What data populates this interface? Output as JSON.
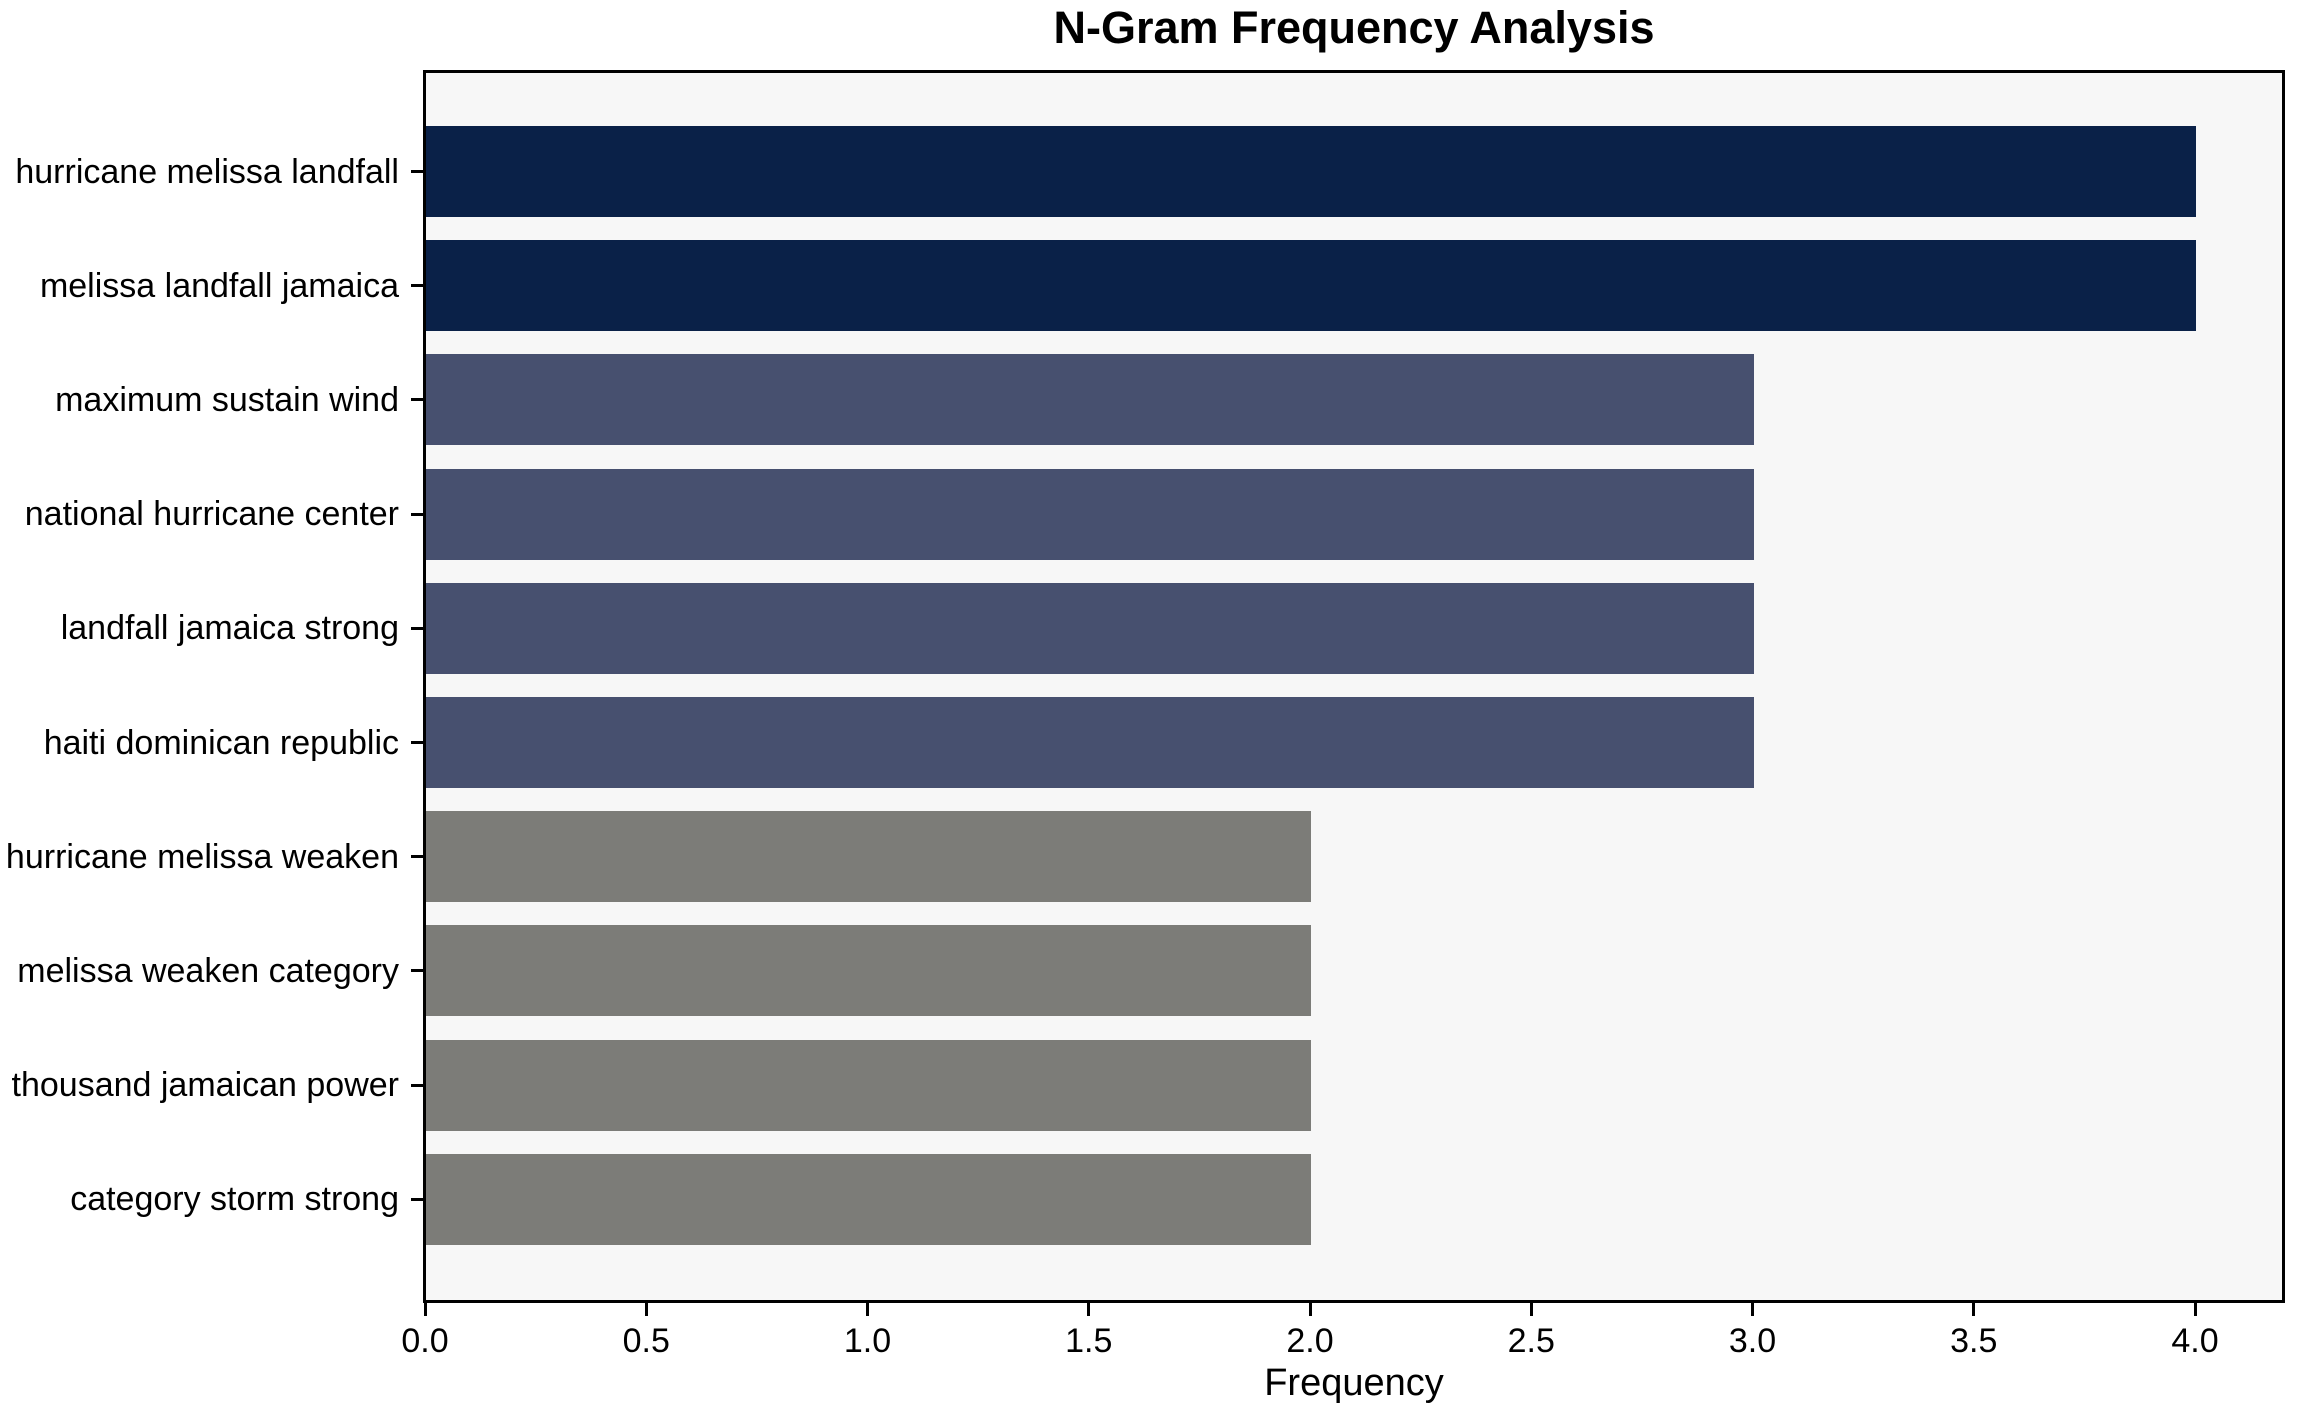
{
  "chart_data": {
    "type": "bar",
    "orientation": "horizontal",
    "title": "N-Gram Frequency Analysis",
    "xlabel": "Frequency",
    "ylabel": "",
    "categories": [
      "hurricane melissa landfall",
      "melissa landfall jamaica",
      "maximum sustain wind",
      "national hurricane center",
      "landfall jamaica strong",
      "haiti dominican republic",
      "hurricane melissa weaken",
      "melissa weaken category",
      "thousand jamaican power",
      "category storm strong"
    ],
    "values": [
      4,
      4,
      3,
      3,
      3,
      3,
      2,
      2,
      2,
      2
    ],
    "bar_colors": [
      "#0a2148",
      "#0a2148",
      "#47506f",
      "#47506f",
      "#47506f",
      "#47506f",
      "#7c7c78",
      "#7c7c78",
      "#7c7c78",
      "#7c7c78"
    ],
    "xlim": [
      0,
      4.2
    ],
    "xticks": [
      0,
      0.5,
      1,
      1.5,
      2,
      2.5,
      3,
      3.5,
      4
    ],
    "xtick_labels": [
      "0.0",
      "0.5",
      "1.0",
      "1.5",
      "2.0",
      "2.5",
      "3.0",
      "3.5",
      "4.0"
    ],
    "grid": false,
    "legend_position": "none",
    "plot_background": "#f7f7f7",
    "figure_background": "#ffffff",
    "spine_color": "#000000"
  }
}
